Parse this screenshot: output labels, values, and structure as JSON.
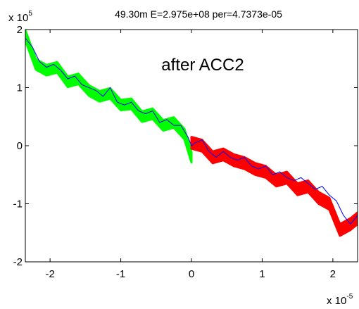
{
  "chart_data": {
    "type": "scatter",
    "title": "49.30m E=2.975e+08 per=4.7373e-05",
    "annotation": "after ACC2",
    "y_exponent_base": "x 10",
    "y_exponent_power": "5",
    "x_exponent_base": "x 10",
    "x_exponent_power": "-5",
    "xlim": [
      -2.35,
      2.35
    ],
    "ylim": [
      -2,
      2
    ],
    "xticks": [
      -2,
      -1,
      0,
      1,
      2
    ],
    "xtick_labels": [
      "-2",
      "-1",
      "0",
      "1",
      "2"
    ],
    "yticks": [
      -2,
      -1,
      0,
      1,
      2
    ],
    "ytick_labels": [
      "-2",
      "-1",
      "0",
      "1",
      "2"
    ],
    "grid": false,
    "legend": "none",
    "series": [
      {
        "color": "#00ff00",
        "band_width": 0.18,
        "x": [
          -2.35,
          -2.2,
          -2.05,
          -1.9,
          -1.75,
          -1.6,
          -1.45,
          -1.3,
          -1.15,
          -1.0,
          -0.85,
          -0.7,
          -0.55,
          -0.4,
          -0.25,
          -0.1,
          0.0
        ],
        "y": [
          1.9,
          1.4,
          1.3,
          1.35,
          1.1,
          1.15,
          0.95,
          0.85,
          0.9,
          0.7,
          0.72,
          0.5,
          0.55,
          0.35,
          0.4,
          0.2,
          -0.2
        ]
      },
      {
        "color": "#ff0000",
        "band_width": 0.2,
        "x": [
          0.0,
          0.15,
          0.3,
          0.45,
          0.6,
          0.75,
          0.9,
          1.05,
          1.2,
          1.35,
          1.5,
          1.65,
          1.8,
          1.95,
          2.1,
          2.25,
          2.35
        ],
        "y": [
          0.05,
          0.0,
          -0.2,
          -0.15,
          -0.25,
          -0.3,
          -0.4,
          -0.45,
          -0.6,
          -0.55,
          -0.75,
          -0.7,
          -0.9,
          -1.0,
          -1.45,
          -1.35,
          -1.25
        ]
      },
      {
        "color": "#0000ff",
        "x": [
          -2.35,
          -2.25,
          -2.15,
          -2.05,
          -1.95,
          -1.85,
          -1.75,
          -1.65,
          -1.55,
          -1.45,
          -1.35,
          -1.25,
          -1.15,
          -1.05,
          -0.95,
          -0.85,
          -0.75,
          -0.65,
          -0.55,
          -0.45,
          -0.35,
          -0.25,
          -0.15,
          -0.05,
          0.0,
          0.05,
          0.15,
          0.25,
          0.35,
          0.45,
          0.55,
          0.65,
          0.75,
          0.85,
          0.95,
          1.05,
          1.15,
          1.25,
          1.35,
          1.45,
          1.55,
          1.65,
          1.75,
          1.85,
          1.95,
          2.05,
          2.15,
          2.25,
          2.35
        ],
        "y": [
          1.85,
          1.7,
          1.45,
          1.35,
          1.4,
          1.3,
          1.15,
          1.2,
          1.05,
          1.0,
          0.95,
          0.85,
          1.0,
          0.75,
          0.7,
          0.75,
          0.6,
          0.55,
          0.6,
          0.4,
          0.45,
          0.35,
          0.35,
          0.15,
          0.0,
          0.05,
          0.1,
          -0.1,
          -0.2,
          -0.1,
          -0.2,
          -0.25,
          -0.2,
          -0.35,
          -0.4,
          -0.35,
          -0.5,
          -0.45,
          -0.55,
          -0.6,
          -0.55,
          -0.65,
          -0.75,
          -0.7,
          -0.85,
          -0.95,
          -1.2,
          -1.35,
          -1.2
        ]
      }
    ]
  }
}
